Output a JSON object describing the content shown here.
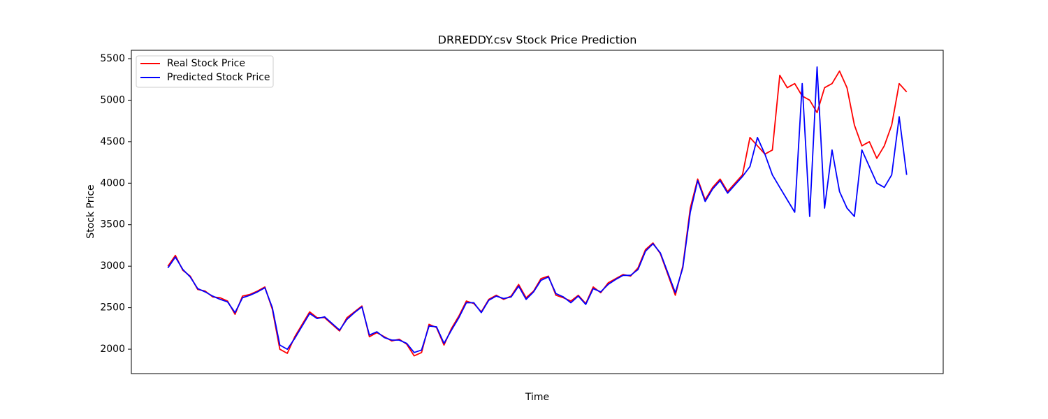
{
  "chart_data": {
    "type": "line",
    "title": "DRREDDY.csv Stock Price Prediction",
    "x_label": "Time",
    "y_label": "Stock Price",
    "ylim": [
      1706,
      5601
    ],
    "yticks": [
      2000,
      2500,
      3000,
      3500,
      4000,
      4500,
      5000,
      5500
    ],
    "legend": "upper left",
    "series": [
      {
        "name": "Real Stock Price",
        "color": "#ff0000",
        "values": [
          3000,
          3130,
          2950,
          2880,
          2720,
          2700,
          2630,
          2620,
          2580,
          2420,
          2640,
          2660,
          2700,
          2750,
          2480,
          2000,
          1950,
          2150,
          2300,
          2450,
          2380,
          2380,
          2300,
          2220,
          2380,
          2450,
          2520,
          2150,
          2200,
          2150,
          2100,
          2120,
          2060,
          1920,
          1960,
          2300,
          2260,
          2050,
          2250,
          2400,
          2580,
          2550,
          2450,
          2600,
          2650,
          2600,
          2640,
          2780,
          2620,
          2700,
          2850,
          2880,
          2650,
          2620,
          2580,
          2650,
          2550,
          2750,
          2680,
          2800,
          2850,
          2900,
          2880,
          2980,
          3200,
          3280,
          3150,
          2900,
          2650,
          3000,
          3700,
          4050,
          3800,
          3950,
          4050,
          3900,
          4000,
          4100,
          4550,
          4450,
          4350,
          4400,
          5300,
          5150,
          5200,
          5050,
          5000,
          4850,
          5150,
          5200,
          5350,
          5150,
          4700,
          4450,
          4500,
          4300,
          4450,
          4700,
          5200,
          5100
        ]
      },
      {
        "name": "Predicted Stock Price",
        "color": "#0000ff",
        "values": [
          2980,
          3110,
          2960,
          2870,
          2730,
          2690,
          2640,
          2600,
          2570,
          2440,
          2620,
          2650,
          2690,
          2740,
          2500,
          2050,
          2000,
          2130,
          2280,
          2430,
          2370,
          2390,
          2310,
          2230,
          2360,
          2440,
          2510,
          2170,
          2210,
          2140,
          2110,
          2110,
          2070,
          1960,
          1990,
          2280,
          2270,
          2070,
          2230,
          2380,
          2560,
          2560,
          2440,
          2590,
          2640,
          2610,
          2630,
          2760,
          2600,
          2690,
          2830,
          2870,
          2670,
          2630,
          2560,
          2640,
          2540,
          2730,
          2690,
          2780,
          2840,
          2890,
          2890,
          2960,
          3180,
          3270,
          3160,
          2920,
          2680,
          2980,
          3650,
          4030,
          3780,
          3930,
          4030,
          3880,
          3980,
          4080,
          4200,
          4550,
          4350,
          4100,
          3950,
          3800,
          3650,
          5200,
          3600,
          5400,
          3700,
          4400,
          3900,
          3700,
          3600,
          4400,
          4200,
          4000,
          3950,
          4100,
          4800,
          4100
        ]
      }
    ]
  }
}
